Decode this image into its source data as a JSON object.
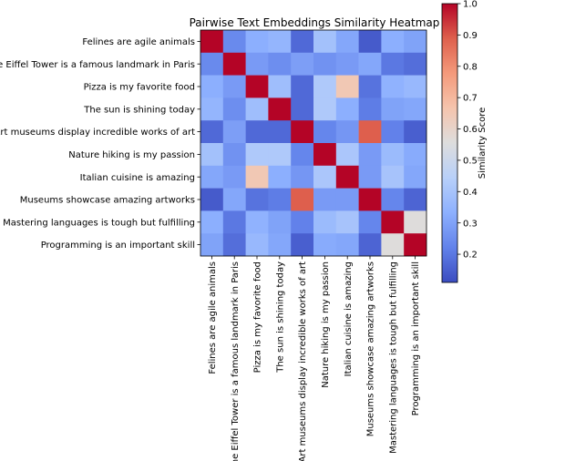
{
  "chart_data": {
    "type": "heatmap",
    "title": "Pairwise Text Embeddings Similarity Heatmap",
    "row_labels": [
      "Felines are agile animals",
      "The Eiffel Tower is a famous landmark in Paris",
      "Pizza is my favorite food",
      "The sun is shining today",
      "Art museums display incredible works of art",
      "Nature hiking is my passion",
      "Italian cuisine is amazing",
      "Museums showcase amazing artworks",
      "Mastering languages is tough but fulfilling",
      "Programming is an important skill"
    ],
    "col_labels": [
      "Felines are agile animals",
      "The Eiffel Tower is a famous landmark in Paris",
      "Pizza is my favorite food",
      "The sun is shining today",
      "Art museums display incredible works of art",
      "Nature hiking is my passion",
      "Italian cuisine is amazing",
      "Museums showcase amazing artworks",
      "Mastering languages is tough but fulfilling",
      "Programming is an important skill"
    ],
    "values": [
      [
        1.0,
        0.24,
        0.33,
        0.35,
        0.17,
        0.39,
        0.31,
        0.14,
        0.33,
        0.3
      ],
      [
        0.24,
        1.0,
        0.28,
        0.25,
        0.29,
        0.26,
        0.28,
        0.31,
        0.2,
        0.18
      ],
      [
        0.33,
        0.28,
        1.0,
        0.38,
        0.17,
        0.42,
        0.65,
        0.19,
        0.34,
        0.36
      ],
      [
        0.35,
        0.25,
        0.38,
        1.0,
        0.17,
        0.42,
        0.33,
        0.21,
        0.3,
        0.31
      ],
      [
        0.17,
        0.29,
        0.17,
        0.17,
        1.0,
        0.23,
        0.27,
        0.89,
        0.22,
        0.15
      ],
      [
        0.39,
        0.26,
        0.42,
        0.42,
        0.23,
        1.0,
        0.41,
        0.28,
        0.37,
        0.32
      ],
      [
        0.31,
        0.28,
        0.65,
        0.33,
        0.27,
        0.41,
        1.0,
        0.28,
        0.4,
        0.31
      ],
      [
        0.14,
        0.31,
        0.19,
        0.21,
        0.89,
        0.28,
        0.28,
        1.0,
        0.23,
        0.16
      ],
      [
        0.33,
        0.2,
        0.34,
        0.3,
        0.22,
        0.37,
        0.4,
        0.23,
        1.0,
        0.56
      ],
      [
        0.3,
        0.18,
        0.36,
        0.31,
        0.15,
        0.32,
        0.31,
        0.16,
        0.56,
        1.0
      ]
    ],
    "colormap": "coolwarm",
    "colorbar": {
      "label": "Similarity Score",
      "range": [
        0.11,
        1.0
      ],
      "ticks": [
        0.2,
        0.3,
        0.4,
        0.5,
        0.6,
        0.7,
        0.8,
        0.9,
        1.0
      ],
      "tick_labels": [
        "0.2",
        "0.3",
        "0.4",
        "0.5",
        "0.6",
        "0.7",
        "0.8",
        "0.9",
        "1.0"
      ]
    },
    "grid": false
  }
}
